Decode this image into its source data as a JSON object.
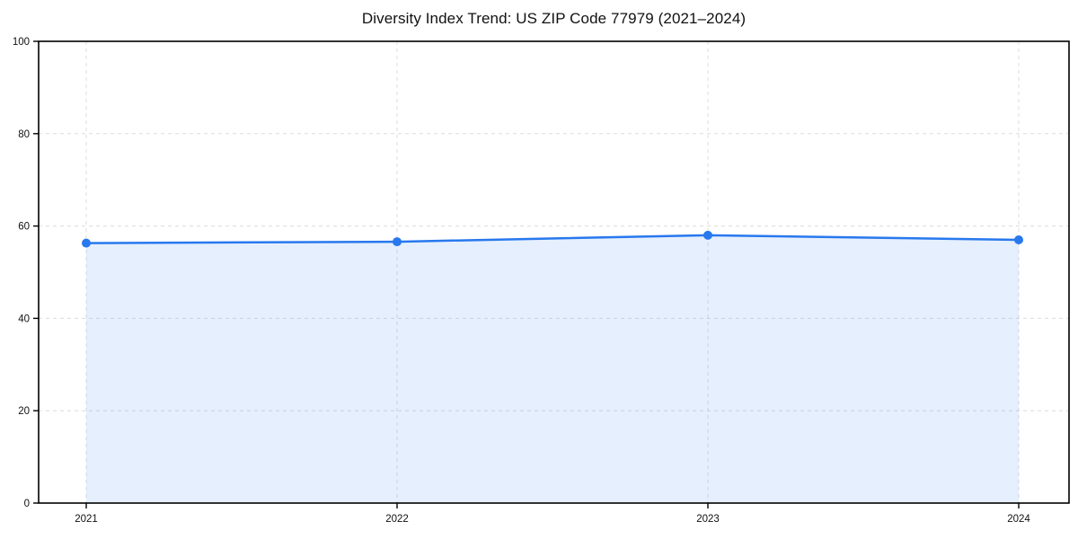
{
  "title": "Diversity Index Trend: US ZIP Code 77979 (2021–2024)",
  "chart_data": {
    "type": "area",
    "title": "Diversity Index Trend: US ZIP Code 77979 (2021–2024)",
    "x": [
      2021,
      2022,
      2023,
      2024
    ],
    "series": [
      {
        "name": "Diversity Index",
        "values": [
          56.3,
          56.6,
          58.0,
          57.0
        ]
      }
    ],
    "xlabel": "",
    "ylabel": "",
    "ylim": [
      0,
      100
    ],
    "yticks": [
      0,
      20,
      40,
      60,
      80,
      100
    ],
    "xticks": [
      "2021",
      "2022",
      "2023",
      "2024"
    ],
    "grid": "dashed, both axes",
    "legend": "none",
    "colors": {
      "line": "#2878ee",
      "marker": "#2878ee",
      "fill": "rgba(40,120,238,0.12)",
      "grid": "#dcdcdc",
      "spine": "#000000",
      "tick_text": "#111111",
      "background": "#ffffff"
    }
  }
}
